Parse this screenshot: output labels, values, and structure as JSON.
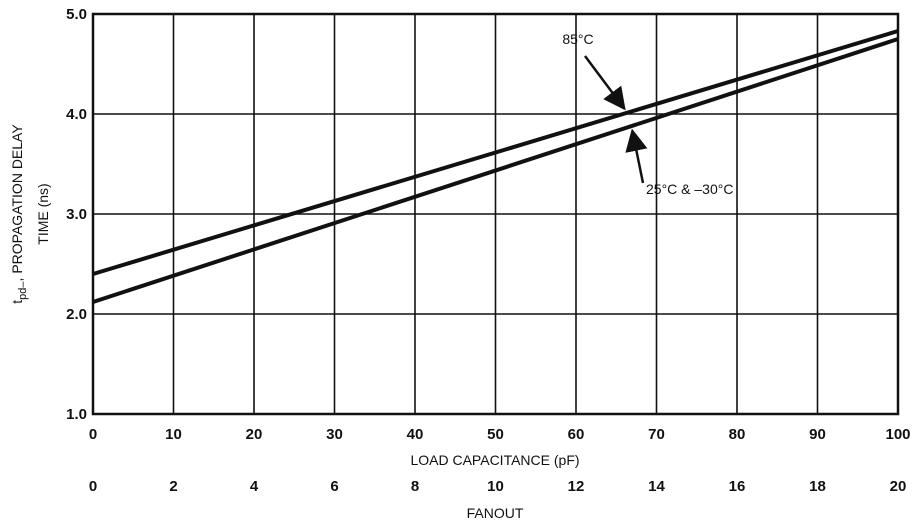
{
  "chart_data": {
    "type": "line",
    "xlabel": "LOAD CAPACITANCE (pF)",
    "x2label": "FANOUT",
    "ylabel_main": "t",
    "ylabel_sub": "pd–",
    "ylabel_rest": ", PROPAGATION DELAY",
    "ylabel_line2": "TIME (ns)",
    "xlim": [
      0,
      100
    ],
    "ylim": [
      1.0,
      5.0
    ],
    "x_ticks": [
      0,
      10,
      20,
      30,
      40,
      50,
      60,
      70,
      80,
      90,
      100
    ],
    "x_tick_labels": [
      "0",
      "10",
      "20",
      "30",
      "40",
      "50",
      "60",
      "70",
      "80",
      "90",
      "100"
    ],
    "y_ticks": [
      1.0,
      2.0,
      3.0,
      4.0,
      5.0
    ],
    "y_tick_labels": [
      "1.0",
      "2.0",
      "3.0",
      "4.0",
      "5.0"
    ],
    "x2_tick_labels": [
      "0",
      "2",
      "4",
      "6",
      "8",
      "10",
      "12",
      "14",
      "16",
      "18",
      "20"
    ],
    "grid": true,
    "series": [
      {
        "x": [
          0,
          100
        ],
        "y": [
          2.4,
          4.83
        ],
        "color": "#111111"
      },
      {
        "x": [
          0,
          100
        ],
        "y": [
          2.12,
          4.75
        ],
        "color": "#111111"
      }
    ],
    "annotations": [
      {
        "text": "85°C",
        "series": 0,
        "point_at_x": 66,
        "color": "#111111"
      },
      {
        "text": "25°C & –30°C",
        "series": 1,
        "point_at_x": 67,
        "color": "#111111"
      }
    ]
  }
}
